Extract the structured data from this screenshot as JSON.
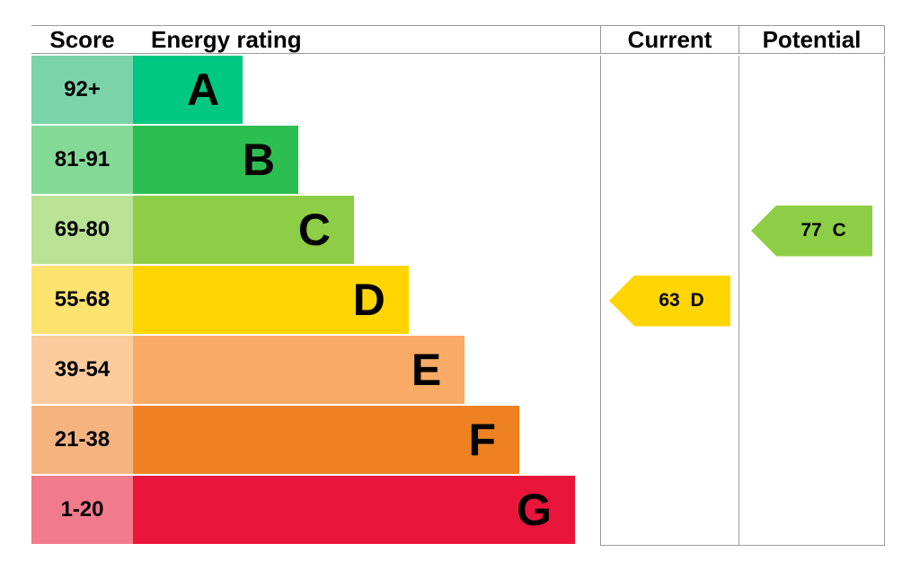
{
  "header": {
    "score": "Score",
    "energy_rating": "Energy rating",
    "current": "Current",
    "potential": "Potential"
  },
  "chart_data": {
    "type": "epc_energy_rating",
    "title": "Energy rating",
    "bands": [
      {
        "score": "92+",
        "letter": "A",
        "color": "#00c781",
        "score_color": "#7bd4a9",
        "width_pct": 23.5
      },
      {
        "score": "81-91",
        "letter": "B",
        "color": "#2dbe51",
        "score_color": "#84d996",
        "width_pct": 35.4
      },
      {
        "score": "69-80",
        "letter": "C",
        "color": "#8dce46",
        "score_color": "#bae294",
        "width_pct": 47.3
      },
      {
        "score": "55-68",
        "letter": "D",
        "color": "#ffd500",
        "score_color": "#fce26f",
        "width_pct": 59.0
      },
      {
        "score": "39-54",
        "letter": "E",
        "color": "#f9aa65",
        "score_color": "#fbcb9e",
        "width_pct": 71.0
      },
      {
        "score": "21-38",
        "letter": "F",
        "color": "#ee8122",
        "score_color": "#f5b47f",
        "width_pct": 82.7
      },
      {
        "score": "1-20",
        "letter": "G",
        "color": "#e9153b",
        "score_color": "#f17a8b",
        "width_pct": 94.6
      }
    ],
    "current": {
      "value": 63,
      "letter": "D",
      "label": "63 D",
      "band_index": 3,
      "color": "#ffd500"
    },
    "potential": {
      "value": 77,
      "letter": "C",
      "label": "77 C",
      "band_index": 2,
      "color": "#8dce46"
    }
  }
}
